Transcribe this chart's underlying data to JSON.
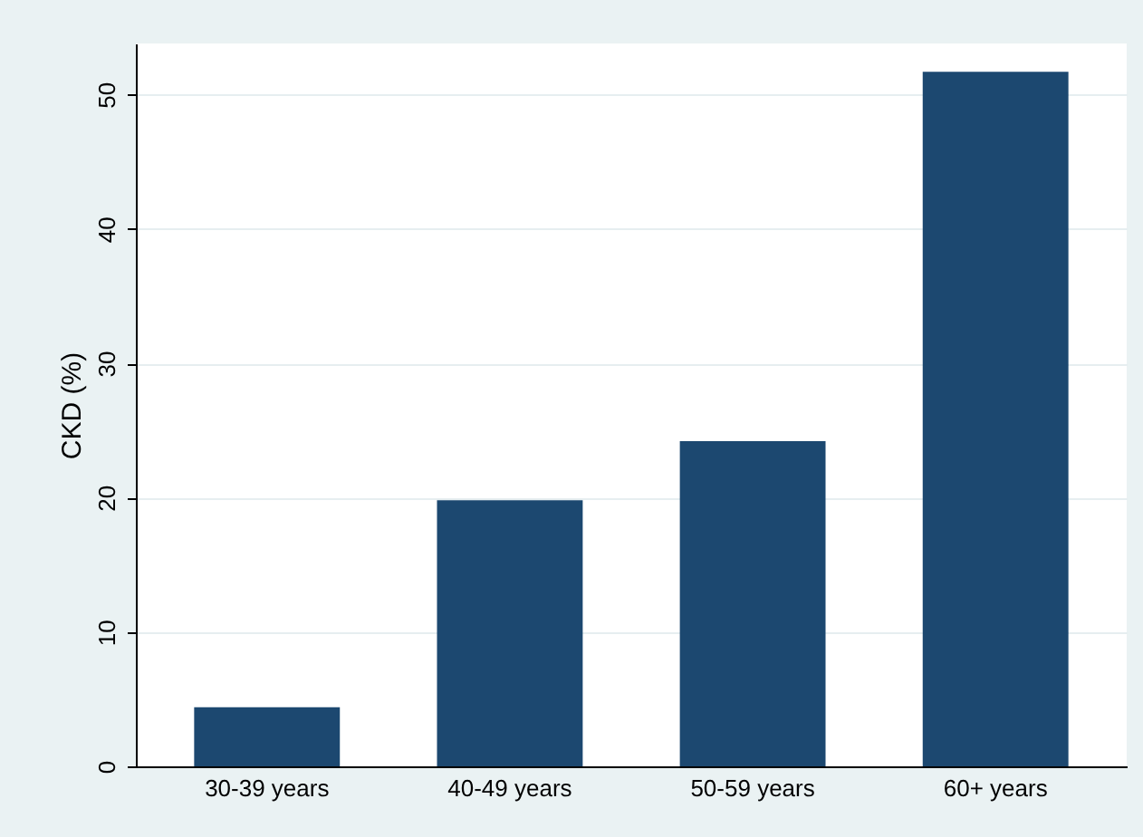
{
  "chart_data": {
    "type": "bar",
    "ylabel": "CKD (%)",
    "categories": [
      "30-39 years",
      "40-49 years",
      "50-59 years",
      "60+ years"
    ],
    "values": [
      4.4,
      19.8,
      24.2,
      51.7
    ],
    "color": "#1c4870",
    "ylim": [
      0,
      53.8
    ],
    "yticks": [
      0,
      10,
      20,
      30,
      40,
      50
    ],
    "grid": "y"
  }
}
